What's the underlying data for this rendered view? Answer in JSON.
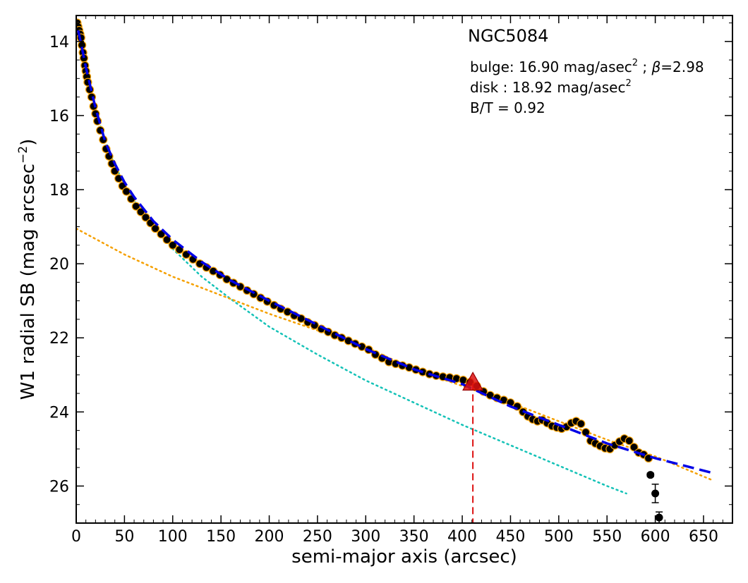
{
  "chart_data": {
    "type": "scatter",
    "title": "NGC5084",
    "xlabel": "semi-major axis (arcsec)",
    "ylabel_main": "W1 radial SB (mag arcsec",
    "ylabel_sup": "−2",
    "ylabel_tail": ")",
    "xlim": [
      0,
      680
    ],
    "ylim": [
      27.0,
      13.3
    ],
    "y_inverted": true,
    "grid": false,
    "x_ticks": [
      0,
      50,
      100,
      150,
      200,
      250,
      300,
      350,
      400,
      450,
      500,
      550,
      600,
      650
    ],
    "y_ticks": [
      14,
      16,
      18,
      20,
      22,
      24,
      26
    ],
    "annotations": {
      "name": "NGC5084",
      "bulge_prefix": "bulge: 16.90 mag/asec",
      "bulge_sup": "2",
      "bulge_mid": " ; ",
      "bulge_beta": "β",
      "bulge_suffix": "=2.98",
      "disk_prefix": "disk  : 18.92 mag/asec",
      "disk_sup": "2",
      "bt": "B/T = 0.92"
    },
    "series": [
      {
        "kind": "observed_profile",
        "color": "#000000",
        "edge_color": "#f5a000",
        "x": [
          1,
          2,
          3,
          4,
          5,
          6,
          7,
          8,
          9,
          10,
          11,
          12,
          14,
          16,
          18,
          20,
          22,
          25,
          28,
          31,
          34,
          37,
          40,
          44,
          48,
          52,
          57,
          62,
          67,
          72,
          77,
          82,
          88,
          94,
          100,
          107,
          114,
          121,
          128,
          135,
          142,
          149,
          156,
          163,
          170,
          177,
          184,
          191,
          198,
          205,
          212,
          219,
          226,
          233,
          240,
          247,
          254,
          261,
          268,
          275,
          282,
          289,
          296,
          303,
          310,
          317,
          324,
          331,
          338,
          345,
          352,
          359,
          366,
          373,
          380,
          387,
          394,
          401,
          408,
          415,
          422,
          429,
          436,
          443,
          450,
          457,
          463,
          468,
          473,
          478,
          483,
          488,
          493,
          498,
          503,
          508,
          513,
          518,
          523,
          528,
          533,
          538,
          543,
          548,
          553,
          558,
          563,
          568,
          573,
          578,
          583,
          588,
          593
        ],
        "y": [
          13.5,
          13.6,
          13.7,
          13.8,
          13.9,
          14.1,
          14.3,
          14.45,
          14.65,
          14.8,
          14.95,
          15.1,
          15.3,
          15.5,
          15.75,
          15.95,
          16.15,
          16.4,
          16.65,
          16.9,
          17.1,
          17.3,
          17.5,
          17.7,
          17.9,
          18.05,
          18.25,
          18.45,
          18.6,
          18.75,
          18.9,
          19.05,
          19.2,
          19.35,
          19.5,
          19.62,
          19.75,
          19.88,
          20.0,
          20.1,
          20.2,
          20.3,
          20.42,
          20.52,
          20.62,
          20.72,
          20.82,
          20.92,
          21.02,
          21.12,
          21.22,
          21.3,
          21.4,
          21.48,
          21.58,
          21.66,
          21.76,
          21.84,
          21.93,
          22.0,
          22.08,
          22.16,
          22.24,
          22.32,
          22.45,
          22.55,
          22.65,
          22.7,
          22.75,
          22.8,
          22.86,
          22.92,
          22.98,
          23.02,
          23.05,
          23.07,
          23.1,
          23.14,
          23.2,
          23.3,
          23.45,
          23.55,
          23.62,
          23.68,
          23.75,
          23.85,
          24.0,
          24.12,
          24.2,
          24.25,
          24.22,
          24.3,
          24.38,
          24.42,
          24.45,
          24.4,
          24.3,
          24.25,
          24.32,
          24.55,
          24.78,
          24.85,
          24.92,
          24.98,
          25.0,
          24.9,
          24.8,
          24.72,
          24.78,
          24.95,
          25.1,
          25.15,
          25.25
        ]
      },
      {
        "kind": "outer_points_with_errors",
        "color": "#000000",
        "x": [
          595,
          600,
          604
        ],
        "y": [
          25.7,
          26.2,
          26.85
        ],
        "yerr": [
          0.05,
          0.25,
          0.15
        ]
      },
      {
        "kind": "total_model",
        "style": "dashed",
        "color": "#0000e6",
        "x": [
          2,
          5,
          10,
          15,
          20,
          30,
          40,
          50,
          60,
          80,
          100,
          130,
          160,
          200,
          250,
          300,
          350,
          400,
          450,
          500,
          550,
          600,
          660
        ],
        "y": [
          13.7,
          14.05,
          14.7,
          15.25,
          15.8,
          16.7,
          17.3,
          17.8,
          18.2,
          18.85,
          19.35,
          19.95,
          20.45,
          21.0,
          21.65,
          22.3,
          22.85,
          23.25,
          23.85,
          24.35,
          24.85,
          25.25,
          25.65
        ]
      },
      {
        "kind": "bulge_component",
        "style": "dotted",
        "color": "#14c2b7",
        "x": [
          2,
          10,
          20,
          30,
          40,
          50,
          60,
          80,
          100,
          130,
          160,
          200,
          250,
          300,
          350,
          400,
          450,
          500,
          550,
          570
        ],
        "y": [
          13.7,
          14.75,
          15.85,
          16.7,
          17.35,
          17.85,
          18.3,
          19.0,
          19.6,
          20.35,
          20.95,
          21.7,
          22.45,
          23.15,
          23.75,
          24.35,
          24.9,
          25.45,
          26.0,
          26.2
        ]
      },
      {
        "kind": "disk_component",
        "style": "dotted",
        "color": "#f5a000",
        "x": [
          0,
          50,
          100,
          150,
          200,
          250,
          300,
          350,
          400,
          450,
          500,
          550,
          600,
          660
        ],
        "y": [
          19.05,
          19.75,
          20.35,
          20.85,
          21.35,
          21.8,
          22.25,
          22.85,
          23.3,
          23.75,
          24.25,
          24.75,
          25.2,
          25.85
        ]
      },
      {
        "kind": "marker",
        "color": "#dd1111",
        "x": [
          411
        ],
        "y": [
          23.22
        ]
      }
    ],
    "vline": {
      "x": 411,
      "y_from": 23.22,
      "y_to": 27.0,
      "color": "#dd1111",
      "style": "dashed"
    }
  }
}
